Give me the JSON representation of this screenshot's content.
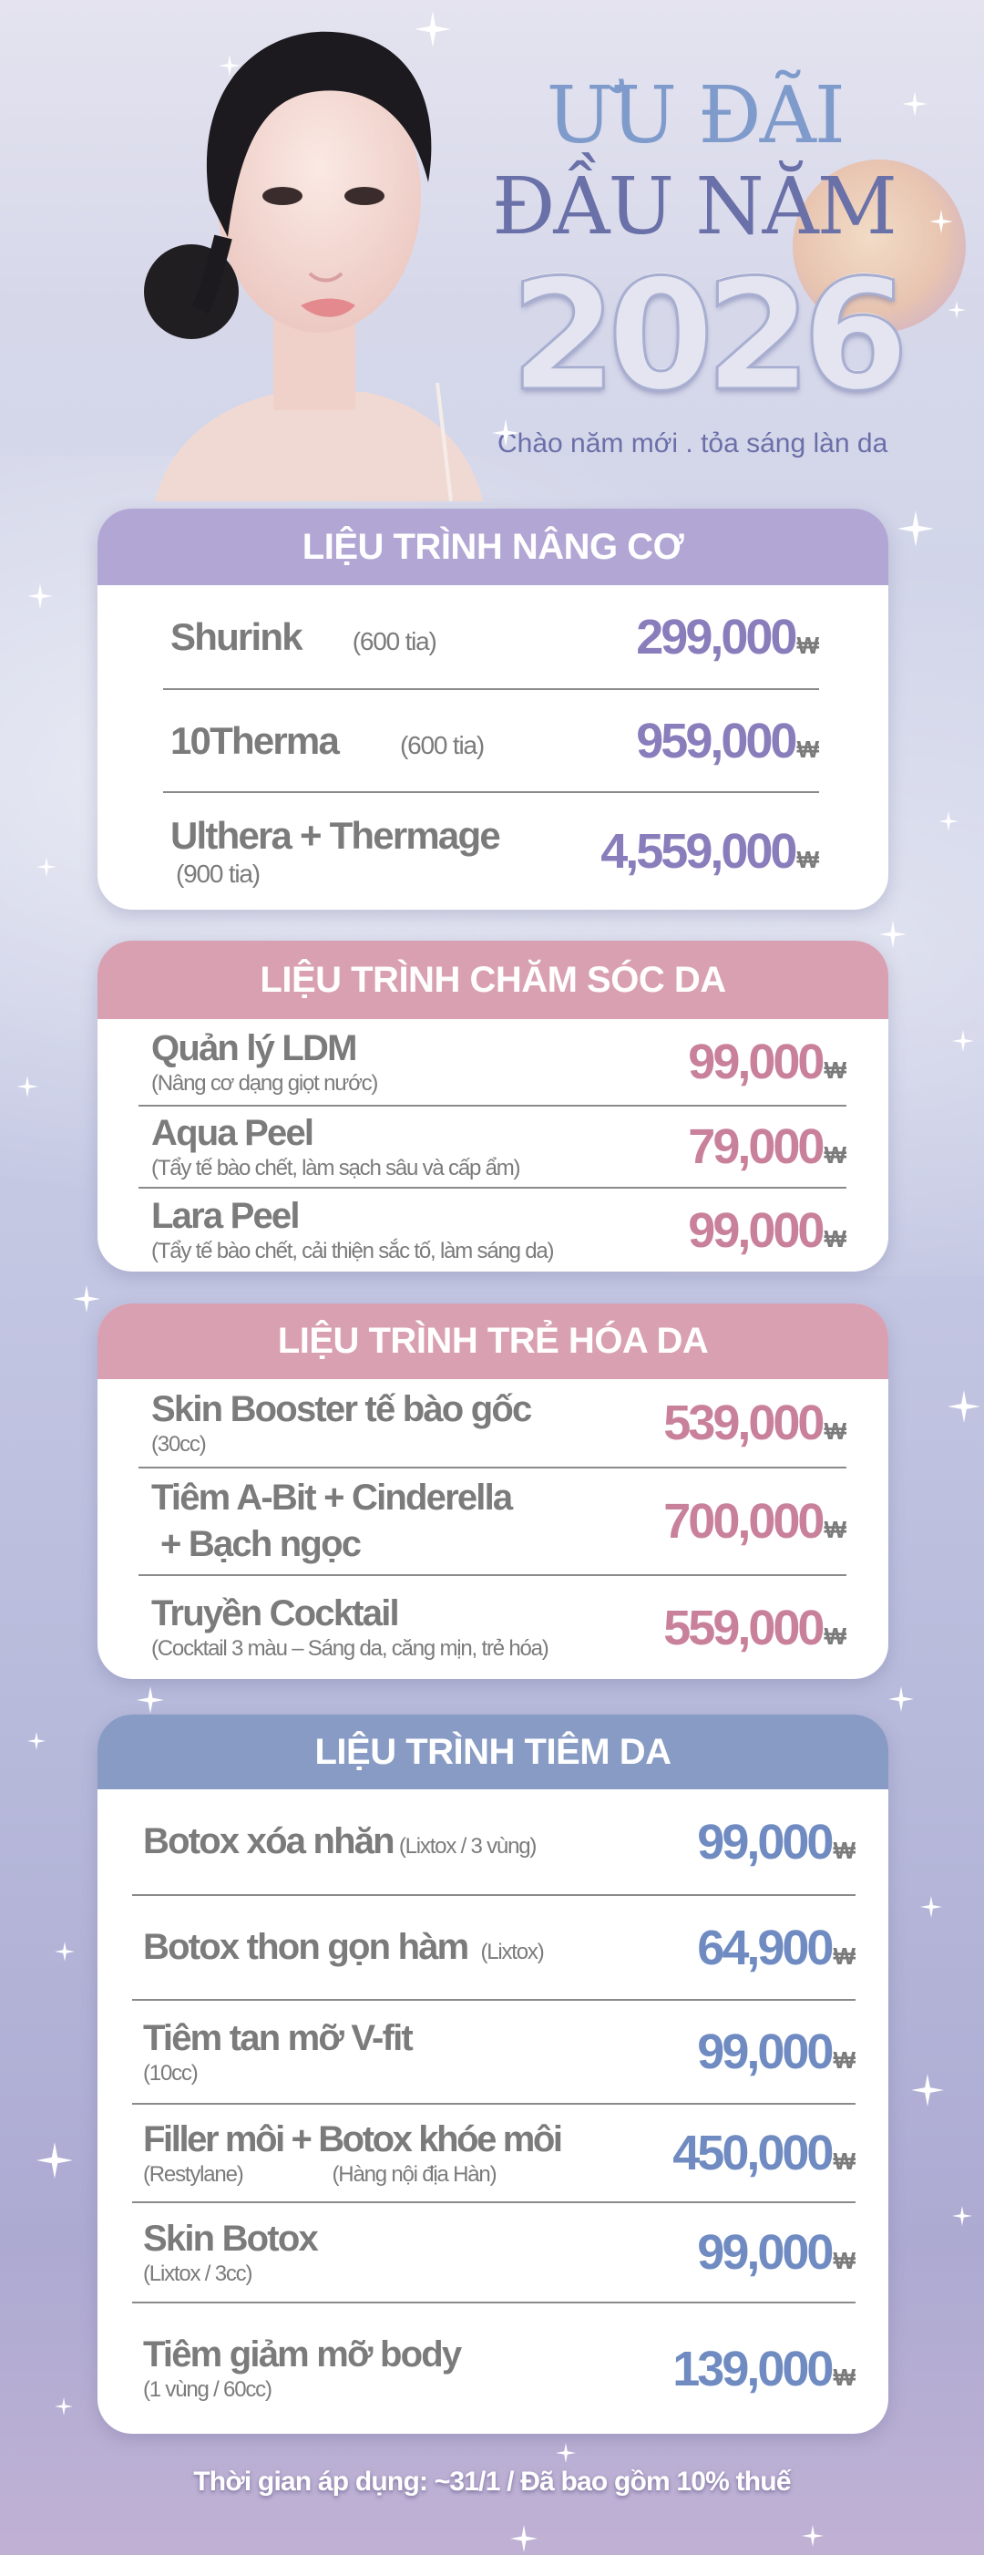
{
  "header": {
    "title_line1": "ƯU ĐÃI",
    "title_line2": "ĐẦU NĂM",
    "year": "2026",
    "subtitle": "Chào năm mới . tỏa sáng làn da"
  },
  "currency_symbol": "₩",
  "sections": [
    {
      "title": "LIỆU TRÌNH NÂNG CƠ",
      "header_color": "#b1a6d4",
      "price_color": "#8a7dbb",
      "items": [
        {
          "name": "Shurink",
          "sub": "(600 tia)",
          "sub_inline": true,
          "price": "299,000"
        },
        {
          "name": "10Therma",
          "sub": "(600 tia)",
          "sub_inline": true,
          "price": "959,000"
        },
        {
          "name": "Ulthera + Thermage",
          "sub": "(900 tia)",
          "price": "4,559,000"
        }
      ]
    },
    {
      "title": "LIỆU TRÌNH CHĂM SÓC DA",
      "header_color": "#d9a0b2",
      "price_color": "#c9819b",
      "items": [
        {
          "name": "Quản lý LDM",
          "sub": "(Nâng cơ dạng giọt nước)",
          "price": "99,000"
        },
        {
          "name": "Aqua Peel",
          "sub": "(Tẩy tế bào chết, làm sạch sâu và cấp ẩm)",
          "price": "79,000"
        },
        {
          "name": "Lara Peel",
          "sub": "(Tẩy tế bào chết, cải thiện sắc tố, làm sáng da)",
          "price": "99,000"
        }
      ]
    },
    {
      "title": "LIỆU TRÌNH TRẺ HÓA DA",
      "header_color": "#d9a0b2",
      "price_color": "#c9819b",
      "items": [
        {
          "name": "Skin Booster tế bào gốc",
          "sub": "(30cc)",
          "price": "539,000"
        },
        {
          "name": "Tiêm A-Bit + Cinderella",
          "name2": "+ Bạch ngọc",
          "price": "700,000"
        },
        {
          "name": "Truyền Cocktail",
          "sub": "(Cocktail 3 màu – Sáng da, căng mịn, trẻ hóa)",
          "price": "559,000"
        }
      ]
    },
    {
      "title": "LIỆU TRÌNH TIÊM DA",
      "header_color": "#889bc4",
      "price_color": "#6f8bc1",
      "items": [
        {
          "name": "Botox xóa nhăn",
          "sub": "(Lixtox / 3 vùng)",
          "sub_inline": true,
          "price": "99,000"
        },
        {
          "name": "Botox thon gọn hàm",
          "sub": "(Lixtox)",
          "sub_inline": true,
          "price": "64,900"
        },
        {
          "name": "Tiêm tan mỡ V-fit",
          "sub": "(10cc)",
          "price": "99,000"
        },
        {
          "name": "Filler môi + Botox khóe môi",
          "sub": "(Restylane)",
          "sub2": "(Hàng nội địa Hàn)",
          "price": "450,000"
        },
        {
          "name": "Skin Botox",
          "sub": "(Lixtox / 3cc)",
          "price": "99,000"
        },
        {
          "name": "Tiêm giảm mỡ body",
          "sub": "(1 vùng / 60cc)",
          "price": "139,000"
        }
      ]
    }
  ],
  "footer": "Thời gian áp dụng: ~31/1 / Đã bao gồm 10% thuế"
}
